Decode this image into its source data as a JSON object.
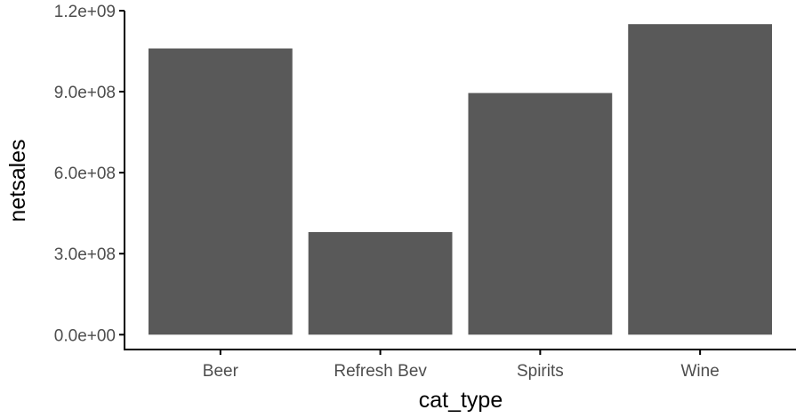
{
  "chart_data": {
    "type": "bar",
    "title": "",
    "xlabel": "cat_type",
    "ylabel": "netsales",
    "categories": [
      "Beer",
      "Refresh Bev",
      "Spirits",
      "Wine"
    ],
    "values": [
      1060000000,
      380000000,
      895000000,
      1150000000
    ],
    "ylim": [
      -55000000,
      1200000000
    ],
    "yticks": [
      0,
      300000000,
      600000000,
      900000000,
      1200000000
    ],
    "ytick_labels": [
      "0.0e+00",
      "3.0e+08",
      "6.0e+08",
      "9.0e+08",
      "1.2e+09"
    ],
    "grid": false,
    "bar_color": "#595959",
    "axis_color": "#000000"
  }
}
